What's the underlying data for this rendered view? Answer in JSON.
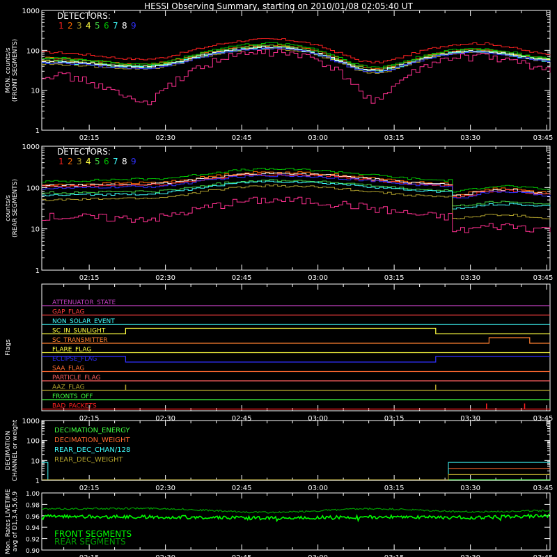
{
  "title": "HESSI Observing Summary, starting on 2010/01/08 02:05:40 UT",
  "time_ticks": [
    "02:15",
    "02:30",
    "02:45",
    "03:00",
    "03:15",
    "03:30",
    "03:45"
  ],
  "legend_heading": "DETECTORS:",
  "detector_colors": [
    "#ff2020",
    "#ff6a00",
    "#b0a02c",
    "#ffff40",
    "#40d040",
    "#00c000",
    "#40ffff",
    "#ffffff",
    "#3030ff"
  ],
  "colors": {
    "front_segments": "#00ff00",
    "rear_segments": "#00a000"
  },
  "chart_data": [
    {
      "id": "front",
      "type": "line",
      "ylabel": [
        "MON. counts/s",
        "(FRONT SEGMENTS)"
      ],
      "y_scale": "log",
      "ylim": [
        1,
        1000
      ],
      "y_ticks": [
        "1",
        "10",
        "100",
        "1000"
      ],
      "x_range_minutes": [
        0,
        100
      ],
      "legend": {
        "heading": "DETECTORS:",
        "labels": [
          "1",
          "2",
          "3",
          "4",
          "5",
          "6",
          "7",
          "8",
          "9"
        ]
      },
      "series": [
        {
          "name": "1",
          "color": "#ff2020",
          "x": [
            0,
            20,
            45,
            65,
            85,
            100
          ],
          "values": [
            90,
            60,
            190,
            50,
            150,
            80
          ]
        },
        {
          "name": "2",
          "color": "#ff6a00",
          "x": [
            0,
            20,
            45,
            65,
            85,
            100
          ],
          "values": [
            65,
            45,
            135,
            35,
            105,
            60
          ]
        },
        {
          "name": "3",
          "color": "#b0a02c",
          "x": [
            0,
            20,
            45,
            65,
            85,
            100
          ],
          "values": [
            45,
            35,
            110,
            28,
            90,
            55
          ]
        },
        {
          "name": "4",
          "color": "#ffff40",
          "x": [
            0,
            20,
            45,
            65,
            85,
            100
          ],
          "values": [
            55,
            40,
            120,
            32,
            95,
            60
          ]
        },
        {
          "name": "5",
          "color": "#40d040",
          "x": [
            0,
            20,
            45,
            65,
            85,
            100
          ],
          "values": [
            60,
            42,
            130,
            33,
            100,
            62
          ]
        },
        {
          "name": "6",
          "color": "#00c000",
          "x": [
            0,
            20,
            45,
            65,
            85,
            100
          ],
          "values": [
            65,
            45,
            150,
            38,
            110,
            65
          ]
        },
        {
          "name": "7",
          "color": "#40ffff",
          "x": [
            0,
            20,
            45,
            65,
            85,
            100
          ],
          "values": [
            50,
            38,
            115,
            30,
            92,
            55
          ]
        },
        {
          "name": "8",
          "color": "#ffffff",
          "x": [
            0,
            20,
            45,
            65,
            85,
            100
          ],
          "values": [
            52,
            40,
            120,
            32,
            95,
            58
          ]
        },
        {
          "name": "9",
          "color": "#3030ff",
          "x": [
            0,
            20,
            45,
            65,
            85,
            100
          ],
          "values": [
            48,
            36,
            112,
            29,
            90,
            54
          ]
        },
        {
          "name": "1",
          "color": "#ff3090",
          "x": [
            0,
            20,
            45,
            65,
            85,
            100
          ],
          "values": [
            25,
            5,
            90,
            6,
            70,
            35
          ]
        }
      ]
    },
    {
      "id": "rear",
      "type": "line",
      "ylabel": [
        "counts/s",
        "(REAR SEGMENTS)"
      ],
      "y_scale": "log",
      "ylim": [
        1,
        1000
      ],
      "y_ticks": [
        "1",
        "10",
        "100",
        "1000"
      ],
      "x_range_minutes": [
        0,
        100
      ],
      "legend": {
        "heading": "DETECTORS:",
        "labels": [
          "1",
          "2",
          "3",
          "4",
          "5",
          "6",
          "7",
          "8",
          "9"
        ]
      },
      "series": [
        {
          "name": "6",
          "color": "#00c000",
          "x": [
            0,
            20,
            45,
            80,
            80.5,
            90,
            100
          ],
          "values": [
            140,
            160,
            280,
            150,
            80,
            110,
            90
          ]
        },
        {
          "name": "2",
          "color": "#ff6a00",
          "x": [
            0,
            20,
            45,
            80,
            80.5,
            90,
            100
          ],
          "values": [
            115,
            130,
            235,
            125,
            65,
            95,
            75
          ]
        },
        {
          "name": "8",
          "color": "#ffffff",
          "x": [
            0,
            20,
            45,
            80,
            80.5,
            90,
            100
          ],
          "values": [
            110,
            120,
            220,
            120,
            62,
            90,
            72
          ]
        },
        {
          "name": "1",
          "color": "#ff2020",
          "x": [
            0,
            20,
            45,
            80,
            80.5,
            90,
            100
          ],
          "values": [
            105,
            115,
            205,
            115,
            58,
            85,
            68
          ]
        },
        {
          "name": "9",
          "color": "#3030ff",
          "x": [
            0,
            20,
            45,
            80,
            80.5,
            90,
            100
          ],
          "values": [
            95,
            105,
            195,
            110,
            55,
            80,
            65
          ]
        },
        {
          "name": "5",
          "color": "#40d040",
          "x": [
            0,
            20,
            45,
            80,
            80.5,
            90,
            100
          ],
          "values": [
            75,
            80,
            150,
            85,
            35,
            45,
            40
          ]
        },
        {
          "name": "7",
          "color": "#40ffff",
          "x": [
            0,
            20,
            45,
            80,
            80.5,
            90,
            100
          ],
          "values": [
            65,
            70,
            140,
            80,
            30,
            40,
            35
          ]
        },
        {
          "name": "3",
          "color": "#b0a02c",
          "x": [
            0,
            20,
            45,
            80,
            80.5,
            90,
            100
          ],
          "values": [
            50,
            55,
            110,
            60,
            18,
            22,
            18
          ]
        },
        {
          "name": "1",
          "color": "#ff3090",
          "x": [
            0,
            20,
            45,
            80,
            80.5,
            90,
            100
          ],
          "values": [
            20,
            18,
            50,
            20,
            9,
            12,
            10
          ]
        }
      ]
    },
    {
      "id": "flags",
      "type": "line",
      "ylabel": [
        "Flags"
      ],
      "x_range_minutes": [
        0,
        100
      ],
      "flags": [
        {
          "label": "ATTENUATOR_STATE",
          "color": "#c040c0",
          "segments": [
            [
              0,
              100,
              0
            ]
          ]
        },
        {
          "label": "GAP_FLAG",
          "color": "#ff4040",
          "segments": [
            [
              0,
              100,
              0
            ]
          ]
        },
        {
          "label": "NON_SOLAR_EVENT",
          "color": "#40ffff",
          "segments": [
            [
              0,
              100,
              0
            ]
          ]
        },
        {
          "label": "SC_IN_SUNLIGHT",
          "color": "#ffff40",
          "segments": [
            [
              0,
              16.5,
              0
            ],
            [
              16.5,
              77.5,
              1
            ],
            [
              77.5,
              100,
              0
            ]
          ]
        },
        {
          "label": "SC_TRANSMITTER",
          "color": "#ff8030",
          "segments": [
            [
              0,
              88,
              0
            ],
            [
              88,
              96,
              1
            ],
            [
              96,
              100,
              0
            ]
          ]
        },
        {
          "label": "FLARE_FLAG",
          "color": "#ffff40",
          "segments": [
            [
              0,
              100,
              0
            ]
          ]
        },
        {
          "label": "ECLIPSE_FLAG",
          "color": "#3030ff",
          "segments": [
            [
              0,
              16.5,
              1
            ],
            [
              16.5,
              77.5,
              0
            ],
            [
              77.5,
              100,
              1
            ]
          ]
        },
        {
          "label": "SAA_FLAG",
          "color": "#ff6a30",
          "segments": [
            [
              0,
              100,
              0
            ]
          ]
        },
        {
          "label": "PARTICLE_FLAG",
          "color": "#ff6060",
          "segments": [
            [
              0,
              100,
              0
            ]
          ]
        },
        {
          "label": "AAZ_FLAG",
          "color": "#b0a02c",
          "segments": [
            [
              0,
              100,
              0
            ]
          ],
          "spikes": [
            16.5,
            77.5
          ]
        },
        {
          "label": "FRONTS_OFF",
          "color": "#40ff40",
          "segments": [
            [
              0,
              100,
              0
            ]
          ]
        },
        {
          "label": "BAD_PACKETS",
          "color": "#ff2020",
          "segments": [
            [
              0,
              100,
              0
            ]
          ],
          "spikes": [
            87.5,
            95
          ]
        }
      ]
    },
    {
      "id": "decimation",
      "type": "line",
      "ylabel": [
        "DECIMATION",
        "CHANNEL or weight"
      ],
      "y_scale": "log",
      "ylim": [
        1,
        1000
      ],
      "y_ticks": [
        "1",
        "10",
        "100",
        "1000"
      ],
      "x_range_minutes": [
        0,
        100
      ],
      "series": [
        {
          "name": "DECIMATION_ENERGY",
          "color": "#40ff40",
          "x": [
            0,
            100
          ],
          "values": [
            1,
            1
          ]
        },
        {
          "name": "DECIMATION_WEIGHT",
          "color": "#ff6a30",
          "x": [
            0,
            80,
            80,
            100
          ],
          "values": [
            1,
            1,
            4,
            4
          ]
        },
        {
          "name": "REAR_DEC_CHAN/128",
          "color": "#40ffff",
          "x": [
            0,
            1.2,
            1.2,
            80,
            80,
            100
          ],
          "values": [
            8,
            8,
            1,
            1,
            8,
            8
          ]
        },
        {
          "name": "REAR_DEC_WEIGHT",
          "color": "#b0a02c",
          "x": [
            0,
            80,
            80,
            100
          ],
          "values": [
            1,
            1,
            2,
            2
          ]
        }
      ]
    },
    {
      "id": "livetime",
      "type": "line",
      "ylabel": [
        "Mon. Rates LIVETIME",
        "avg of D1,3,4,5,6,9"
      ],
      "ylim": [
        0.9,
        1.0
      ],
      "y_ticks": [
        "0.90",
        "0.92",
        "0.94",
        "0.96",
        "0.98",
        "1.00"
      ],
      "x_range_minutes": [
        0,
        100
      ],
      "series": [
        {
          "name": "FRONT SEGMENTS",
          "color": "#00ff00",
          "x": [
            0,
            20,
            45,
            65,
            85,
            100
          ],
          "values": [
            0.959,
            0.958,
            0.956,
            0.958,
            0.957,
            0.96
          ]
        },
        {
          "name": "REAR SEGMENTS",
          "color": "#00a000",
          "x": [
            0,
            20,
            45,
            65,
            85,
            100
          ],
          "values": [
            0.972,
            0.973,
            0.966,
            0.972,
            0.967,
            0.969
          ]
        }
      ]
    }
  ]
}
